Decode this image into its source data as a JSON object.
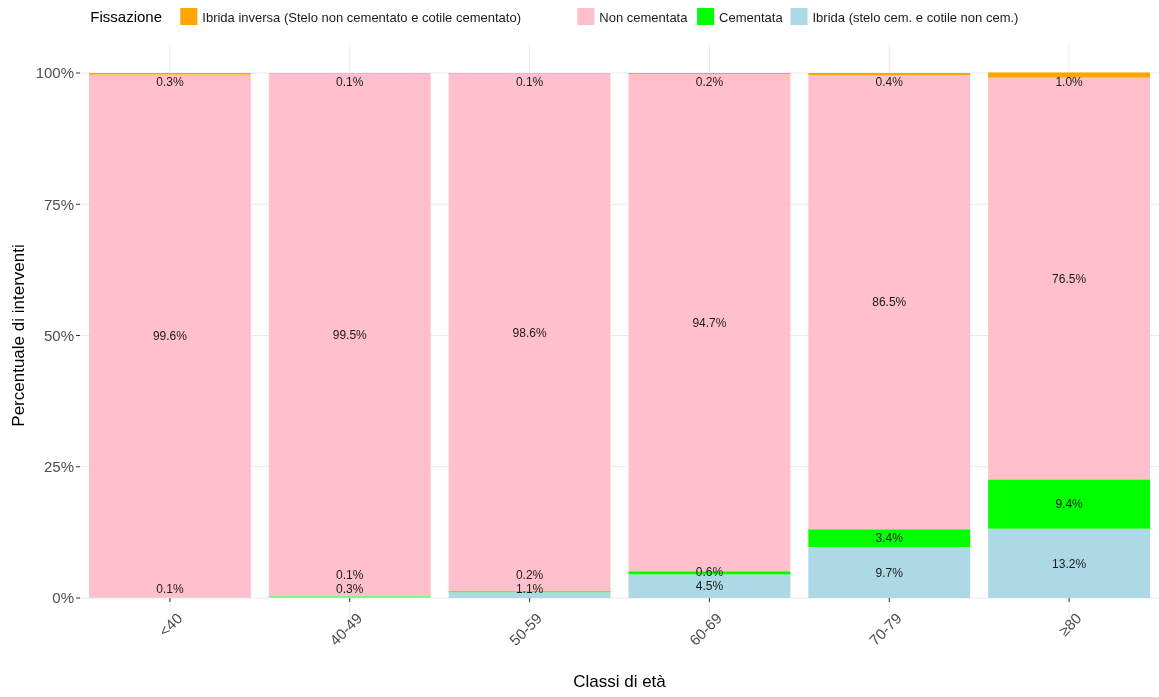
{
  "chart_data": {
    "type": "bar",
    "stacked": true,
    "xlabel": "Classi di età",
    "ylabel": "Percentuale di interventi",
    "legend_title": "Fissazione",
    "legend": "top",
    "categories": [
      "<40",
      "40-49",
      "50-59",
      "60-69",
      "70-79",
      "≥80"
    ],
    "series": [
      {
        "name": "Ibrida (stelo cem. e cotile non cem.)",
        "color": "#add8e6",
        "values": [
          0.1,
          0.3,
          1.1,
          4.5,
          9.7,
          13.2
        ],
        "value_labels": [
          "0.1%",
          "0.3%",
          "1.1%",
          "4.5%",
          "9.7%",
          "13.2%"
        ]
      },
      {
        "name": "Cementata",
        "color": "#00ff00",
        "values": [
          null,
          0.1,
          0.2,
          0.6,
          3.4,
          9.4
        ],
        "value_labels": [
          null,
          "0.1%",
          "0.2%",
          "0.6%",
          "3.4%",
          "9.4%"
        ]
      },
      {
        "name": "Non cementata",
        "color": "#ffc0cb",
        "values": [
          99.6,
          99.5,
          98.6,
          94.7,
          86.5,
          76.5
        ],
        "value_labels": [
          "99.6%",
          "99.5%",
          "98.6%",
          "94.7%",
          "86.5%",
          "76.5%"
        ]
      },
      {
        "name": "Ibrida inversa (Stelo non cementato e cotile cementato)",
        "color": "#ffa500",
        "values": [
          0.3,
          0.1,
          0.1,
          0.2,
          0.4,
          1.0
        ],
        "value_labels": [
          "0.3%",
          "0.1%",
          "0.1%",
          "0.2%",
          "0.4%",
          "1.0%"
        ]
      }
    ],
    "ylim": [
      0,
      100
    ],
    "yticks": [
      {
        "value": 0,
        "label": "0%"
      },
      {
        "value": 25,
        "label": "25%"
      },
      {
        "value": 50,
        "label": "50%"
      },
      {
        "value": 75,
        "label": "75%"
      },
      {
        "value": 100,
        "label": "100%"
      }
    ],
    "grid": true
  }
}
